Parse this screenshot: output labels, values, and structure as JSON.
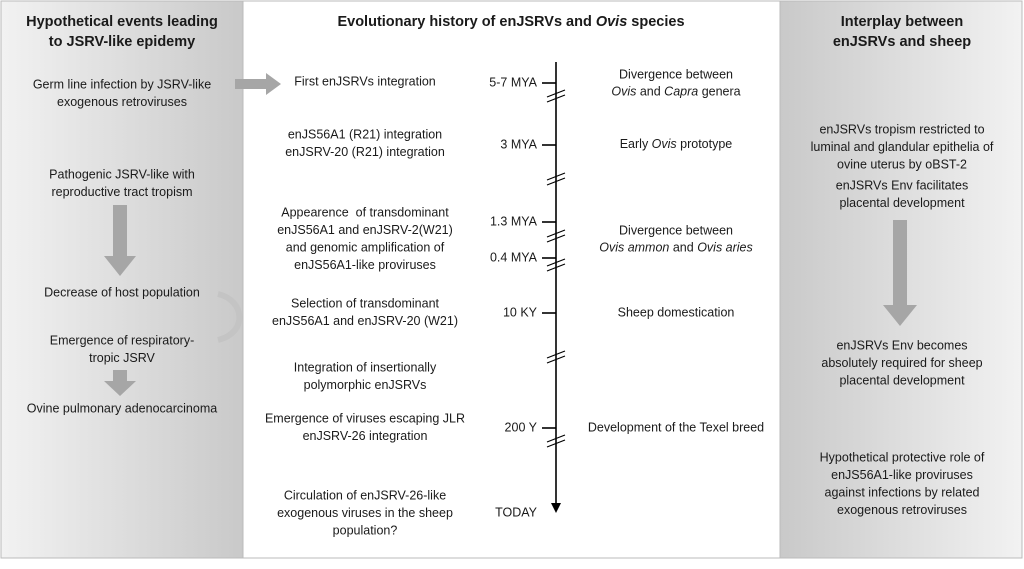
{
  "left": {
    "title": [
      "Hypothetical events leading",
      "to JSRV-like epidemy"
    ],
    "items": [
      [
        "Germ line infection by JSRV-like",
        "exogenous retroviruses"
      ],
      [
        "Pathogenic JSRV-like with",
        "reproductive tract tropism"
      ],
      [
        "Decrease of host population"
      ],
      [
        "Emergence of respiratory-",
        "tropic JSRV"
      ],
      [
        "Ovine pulmonary adenocarcinoma"
      ]
    ]
  },
  "center": {
    "title": [
      [
        "Evolutionary history of enJSRVs and ",
        {
          "italic": "Ovis"
        },
        " species"
      ]
    ],
    "events": [
      {
        "text": [
          "First enJSRVs integration"
        ],
        "times": [
          "5-7 MYA"
        ],
        "species": [
          "Divergence between",
          [
            {
              "italic": "Ovis"
            },
            " and ",
            {
              "italic": "Capra"
            },
            " genera"
          ]
        ]
      },
      {
        "text": [
          "enJS56A1 (R21) integration",
          "enJSRV-20 (R21) integration"
        ],
        "times": [
          "3 MYA"
        ],
        "species": [
          [
            "Early ",
            {
              "italic": "Ovis"
            },
            " prototype"
          ]
        ]
      },
      {
        "text": [
          "Appearence  of transdominant",
          "enJS56A1 and enJSRV-2(W21)",
          "and genomic amplification of",
          "enJS56A1-like proviruses"
        ],
        "times": [
          "1.3 MYA",
          "0.4 MYA"
        ],
        "species": [
          "Divergence between",
          [
            {
              "italic": "Ovis ammon"
            },
            " and ",
            {
              "italic": "Ovis aries"
            }
          ]
        ]
      },
      {
        "text": [
          "Selection of transdominant",
          "enJS56A1 and enJSRV-20 (W21)"
        ],
        "times": [
          "10 KY"
        ],
        "species": [
          "Sheep domestication"
        ]
      },
      {
        "text": [
          "Integration of insertionally",
          "polymorphic enJSRVs"
        ]
      },
      {
        "text": [
          "Emergence of viruses escaping JLR",
          "enJSRV-26 integration"
        ],
        "times": [
          "200 Y"
        ],
        "species": [
          "Development of the Texel breed"
        ]
      },
      {
        "text": [
          "Circulation of enJSRV-26-like",
          "exogenous viruses in the sheep",
          "population?"
        ],
        "times": [
          "TODAY"
        ]
      }
    ]
  },
  "right": {
    "title": [
      "Interplay between",
      "enJSRVs and sheep"
    ],
    "items": [
      [
        "enJSRVs tropism restricted to",
        "luminal and glandular epithelia of",
        "ovine uterus by oBST-2"
      ],
      [
        "enJSRVs Env facilitates",
        "placental development"
      ],
      [
        "enJSRVs Env becomes",
        "absolutely required for sheep",
        "placental development"
      ],
      [
        "Hypothetical protective role of",
        "enJS56A1-like proviruses",
        "against infections by related",
        "exogenous retroviruses"
      ]
    ]
  }
}
